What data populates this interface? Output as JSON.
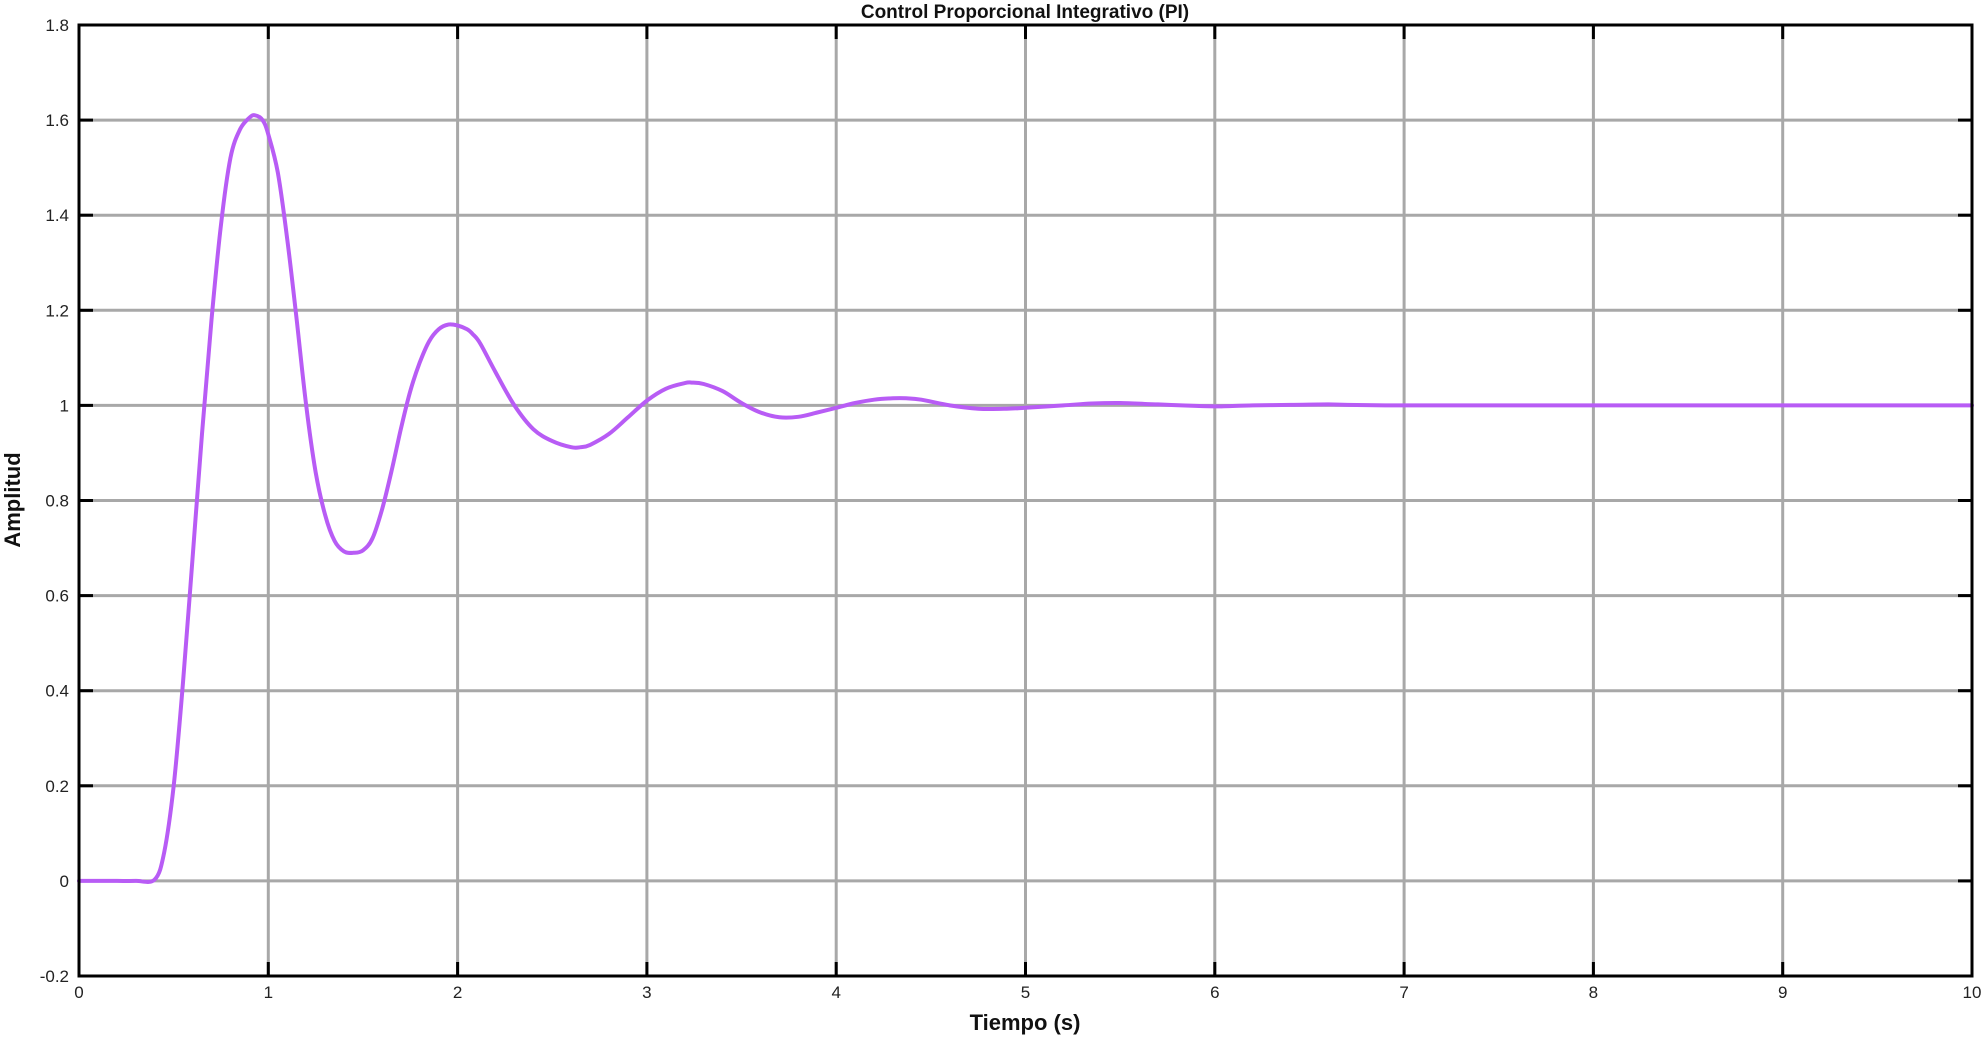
{
  "chart_data": {
    "type": "line",
    "title": "Control Proporcional Integrativo (PI)",
    "xlabel": "Tiempo (s)",
    "ylabel": "Amplitud",
    "xlim": [
      0,
      10
    ],
    "ylim": [
      -0.2,
      1.8
    ],
    "xticks": [
      0,
      1,
      2,
      3,
      4,
      5,
      6,
      7,
      8,
      9,
      10
    ],
    "xtick_labels": [
      "0",
      "1",
      "2",
      "3",
      "4",
      "5",
      "6",
      "7",
      "8",
      "9",
      "10"
    ],
    "yticks": [
      -0.2,
      0,
      0.2,
      0.4,
      0.6,
      0.8,
      1,
      1.2,
      1.4,
      1.6,
      1.8
    ],
    "ytick_labels": [
      "-0.2",
      "0",
      "0.2",
      "0.4",
      "0.6",
      "0.8",
      "1",
      "1.2",
      "1.4",
      "1.6",
      "1.8"
    ],
    "grid": true,
    "series": [
      {
        "color": "#b85cf5",
        "x": [
          0,
          0.1,
          0.2,
          0.3,
          0.4,
          0.45,
          0.5,
          0.55,
          0.6,
          0.65,
          0.7,
          0.75,
          0.8,
          0.85,
          0.9,
          0.93,
          0.97,
          1.0,
          1.05,
          1.1,
          1.15,
          1.2,
          1.25,
          1.3,
          1.35,
          1.4,
          1.45,
          1.5,
          1.55,
          1.6,
          1.65,
          1.7,
          1.75,
          1.8,
          1.85,
          1.9,
          1.95,
          2.0,
          2.05,
          2.08,
          2.12,
          2.2,
          2.3,
          2.4,
          2.5,
          2.6,
          2.65,
          2.7,
          2.8,
          2.9,
          3.0,
          3.1,
          3.2,
          3.24,
          3.3,
          3.4,
          3.5,
          3.6,
          3.7,
          3.8,
          3.9,
          4.0,
          4.1,
          4.2,
          4.3,
          4.37,
          4.45,
          4.6,
          4.75,
          4.9,
          5.0,
          5.2,
          5.35,
          5.5,
          5.7,
          5.9,
          6.0,
          6.2,
          6.4,
          6.6,
          6.7,
          6.9,
          7.2,
          7.5,
          8.0,
          8.5,
          9.0,
          9.5,
          10.0
        ],
        "y": [
          0,
          0,
          0,
          0,
          0.003,
          0.06,
          0.2,
          0.42,
          0.68,
          0.94,
          1.18,
          1.38,
          1.52,
          1.58,
          1.605,
          1.61,
          1.6,
          1.57,
          1.49,
          1.35,
          1.18,
          1.0,
          0.86,
          0.77,
          0.715,
          0.693,
          0.69,
          0.695,
          0.72,
          0.78,
          0.86,
          0.95,
          1.03,
          1.09,
          1.135,
          1.16,
          1.17,
          1.168,
          1.16,
          1.15,
          1.13,
          1.07,
          1.0,
          0.95,
          0.925,
          0.912,
          0.912,
          0.917,
          0.94,
          0.975,
          1.01,
          1.035,
          1.047,
          1.048,
          1.045,
          1.03,
          1.005,
          0.985,
          0.975,
          0.976,
          0.985,
          0.995,
          1.005,
          1.012,
          1.015,
          1.015,
          1.012,
          1.0,
          0.993,
          0.993,
          0.995,
          1.0,
          1.004,
          1.005,
          1.002,
          0.999,
          0.998,
          1.0,
          1.001,
          1.002,
          1.001,
          1.0,
          1.0,
          1.0,
          1.0,
          1.0,
          1.0,
          1.0,
          1.0
        ]
      }
    ]
  }
}
